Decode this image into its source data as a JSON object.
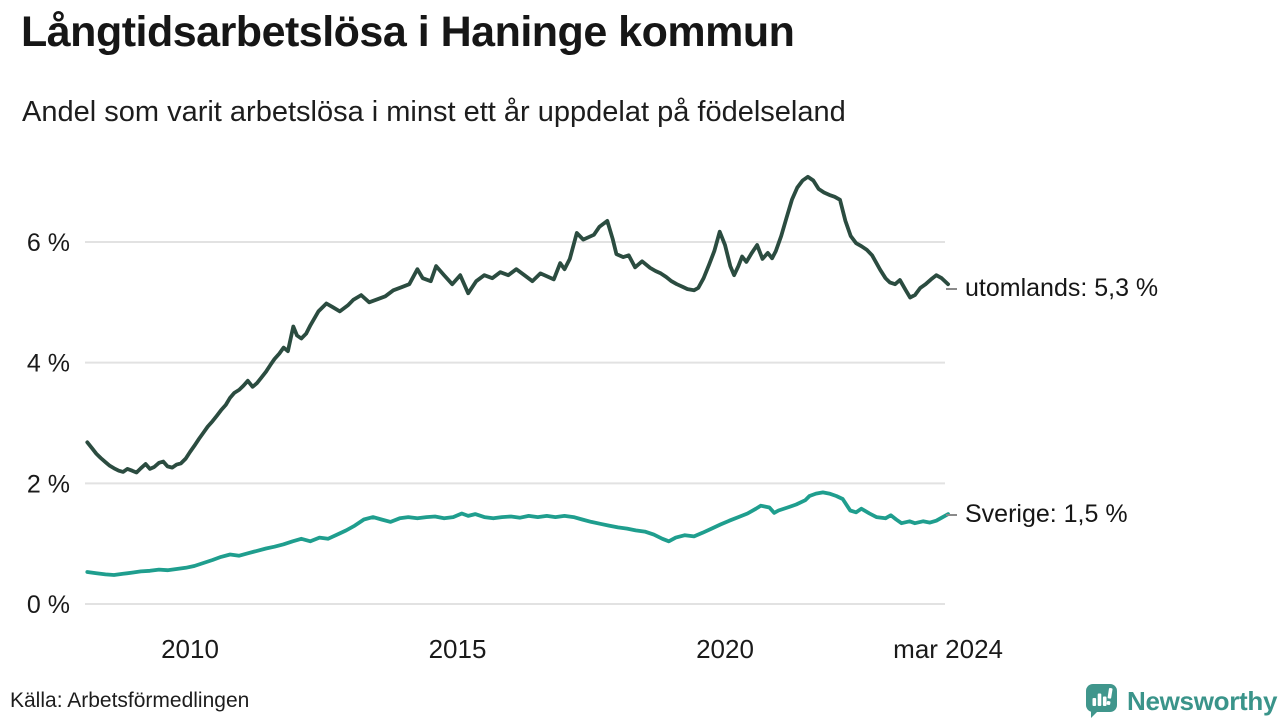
{
  "header": {
    "title": "Långtidsarbetslösa i Haninge kommun",
    "subtitle": "Andel som varit arbetslösa i minst ett år uppdelat på födelseland"
  },
  "footer": {
    "source": "Källa: Arbetsförmedlingen",
    "brand": "Newsworthy",
    "brand_color": "#40968c",
    "logo_icon": "speech-bubble-bar-chart"
  },
  "colors": {
    "text": "#1a1a1a",
    "grid": "#e2e2e2",
    "tick_dash": "#8a8a8a"
  },
  "chart_data": {
    "type": "line",
    "title": "Långtidsarbetslösa i Haninge kommun",
    "subtitle": "Andel som varit arbetslösa i minst ett år uppdelat på födelseland",
    "source": "Källa: Arbetsförmedlingen",
    "unit": "%",
    "grid": true,
    "legend_position": "end-of-line",
    "xlim": [
      2008.0,
      2024.25
    ],
    "ylim": [
      0,
      7.5
    ],
    "yticks": [
      {
        "value": 0,
        "label": "0 %"
      },
      {
        "value": 2,
        "label": "2 %"
      },
      {
        "value": 4,
        "label": "4 %"
      },
      {
        "value": 6,
        "label": "6 %"
      }
    ],
    "xticks": [
      {
        "value": 2010,
        "label": "2010"
      },
      {
        "value": 2015,
        "label": "2015"
      },
      {
        "value": 2020,
        "label": "2020"
      },
      {
        "value": 2024.17,
        "label": "mar 2024"
      }
    ],
    "series": [
      {
        "name": "utomlands",
        "label": "utomlands: 5,3 %",
        "last_value": 5.3,
        "color": "#2b4c40",
        "points": [
          [
            2008.08,
            2.68
          ],
          [
            2008.17,
            2.58
          ],
          [
            2008.25,
            2.49
          ],
          [
            2008.33,
            2.42
          ],
          [
            2008.42,
            2.35
          ],
          [
            2008.5,
            2.29
          ],
          [
            2008.58,
            2.25
          ],
          [
            2008.67,
            2.21
          ],
          [
            2008.75,
            2.19
          ],
          [
            2008.83,
            2.24
          ],
          [
            2008.92,
            2.21
          ],
          [
            2009.0,
            2.18
          ],
          [
            2009.08,
            2.25
          ],
          [
            2009.17,
            2.32
          ],
          [
            2009.25,
            2.24
          ],
          [
            2009.33,
            2.27
          ],
          [
            2009.42,
            2.34
          ],
          [
            2009.5,
            2.36
          ],
          [
            2009.58,
            2.28
          ],
          [
            2009.67,
            2.26
          ],
          [
            2009.75,
            2.31
          ],
          [
            2009.83,
            2.33
          ],
          [
            2009.92,
            2.41
          ],
          [
            2010.0,
            2.52
          ],
          [
            2010.08,
            2.62
          ],
          [
            2010.17,
            2.74
          ],
          [
            2010.25,
            2.84
          ],
          [
            2010.33,
            2.94
          ],
          [
            2010.42,
            3.03
          ],
          [
            2010.5,
            3.12
          ],
          [
            2010.58,
            3.21
          ],
          [
            2010.67,
            3.3
          ],
          [
            2010.75,
            3.42
          ],
          [
            2010.83,
            3.5
          ],
          [
            2010.92,
            3.55
          ],
          [
            2011.0,
            3.62
          ],
          [
            2011.08,
            3.7
          ],
          [
            2011.17,
            3.6
          ],
          [
            2011.25,
            3.66
          ],
          [
            2011.33,
            3.75
          ],
          [
            2011.42,
            3.85
          ],
          [
            2011.5,
            3.96
          ],
          [
            2011.58,
            4.06
          ],
          [
            2011.67,
            4.15
          ],
          [
            2011.75,
            4.25
          ],
          [
            2011.83,
            4.19
          ],
          [
            2011.93,
            4.6
          ],
          [
            2012.0,
            4.45
          ],
          [
            2012.08,
            4.4
          ],
          [
            2012.17,
            4.48
          ],
          [
            2012.25,
            4.62
          ],
          [
            2012.4,
            4.85
          ],
          [
            2012.55,
            4.98
          ],
          [
            2012.67,
            4.92
          ],
          [
            2012.8,
            4.85
          ],
          [
            2012.95,
            4.95
          ],
          [
            2013.05,
            5.04
          ],
          [
            2013.2,
            5.12
          ],
          [
            2013.35,
            5.0
          ],
          [
            2013.5,
            5.05
          ],
          [
            2013.65,
            5.1
          ],
          [
            2013.8,
            5.2
          ],
          [
            2013.95,
            5.25
          ],
          [
            2014.1,
            5.3
          ],
          [
            2014.25,
            5.55
          ],
          [
            2014.35,
            5.4
          ],
          [
            2014.5,
            5.35
          ],
          [
            2014.6,
            5.6
          ],
          [
            2014.75,
            5.45
          ],
          [
            2014.9,
            5.3
          ],
          [
            2015.05,
            5.45
          ],
          [
            2015.2,
            5.15
          ],
          [
            2015.35,
            5.35
          ],
          [
            2015.5,
            5.45
          ],
          [
            2015.65,
            5.4
          ],
          [
            2015.8,
            5.5
          ],
          [
            2015.95,
            5.45
          ],
          [
            2016.1,
            5.55
          ],
          [
            2016.25,
            5.45
          ],
          [
            2016.4,
            5.35
          ],
          [
            2016.55,
            5.48
          ],
          [
            2016.7,
            5.42
          ],
          [
            2016.8,
            5.38
          ],
          [
            2016.92,
            5.65
          ],
          [
            2017.0,
            5.55
          ],
          [
            2017.1,
            5.72
          ],
          [
            2017.23,
            6.15
          ],
          [
            2017.35,
            6.04
          ],
          [
            2017.45,
            6.08
          ],
          [
            2017.55,
            6.12
          ],
          [
            2017.65,
            6.25
          ],
          [
            2017.8,
            6.35
          ],
          [
            2017.9,
            6.05
          ],
          [
            2017.97,
            5.8
          ],
          [
            2018.1,
            5.75
          ],
          [
            2018.2,
            5.78
          ],
          [
            2018.32,
            5.58
          ],
          [
            2018.45,
            5.68
          ],
          [
            2018.6,
            5.57
          ],
          [
            2018.7,
            5.52
          ],
          [
            2018.8,
            5.48
          ],
          [
            2018.9,
            5.42
          ],
          [
            2019.0,
            5.35
          ],
          [
            2019.1,
            5.3
          ],
          [
            2019.2,
            5.26
          ],
          [
            2019.3,
            5.22
          ],
          [
            2019.42,
            5.2
          ],
          [
            2019.5,
            5.24
          ],
          [
            2019.6,
            5.4
          ],
          [
            2019.7,
            5.62
          ],
          [
            2019.8,
            5.85
          ],
          [
            2019.9,
            6.17
          ],
          [
            2020.0,
            5.95
          ],
          [
            2020.1,
            5.6
          ],
          [
            2020.17,
            5.45
          ],
          [
            2020.25,
            5.6
          ],
          [
            2020.32,
            5.76
          ],
          [
            2020.4,
            5.67
          ],
          [
            2020.5,
            5.82
          ],
          [
            2020.6,
            5.95
          ],
          [
            2020.7,
            5.72
          ],
          [
            2020.8,
            5.82
          ],
          [
            2020.88,
            5.73
          ],
          [
            2020.95,
            5.85
          ],
          [
            2021.05,
            6.1
          ],
          [
            2021.15,
            6.4
          ],
          [
            2021.25,
            6.7
          ],
          [
            2021.35,
            6.9
          ],
          [
            2021.45,
            7.02
          ],
          [
            2021.55,
            7.08
          ],
          [
            2021.65,
            7.02
          ],
          [
            2021.75,
            6.88
          ],
          [
            2021.85,
            6.82
          ],
          [
            2021.95,
            6.78
          ],
          [
            2022.05,
            6.75
          ],
          [
            2022.15,
            6.7
          ],
          [
            2022.25,
            6.35
          ],
          [
            2022.35,
            6.1
          ],
          [
            2022.45,
            5.98
          ],
          [
            2022.55,
            5.93
          ],
          [
            2022.65,
            5.87
          ],
          [
            2022.75,
            5.78
          ],
          [
            2022.9,
            5.54
          ],
          [
            2023.0,
            5.4
          ],
          [
            2023.08,
            5.33
          ],
          [
            2023.18,
            5.3
          ],
          [
            2023.27,
            5.37
          ],
          [
            2023.38,
            5.2
          ],
          [
            2023.46,
            5.08
          ],
          [
            2023.55,
            5.12
          ],
          [
            2023.65,
            5.24
          ],
          [
            2023.75,
            5.3
          ],
          [
            2023.85,
            5.38
          ],
          [
            2023.95,
            5.45
          ],
          [
            2024.05,
            5.4
          ],
          [
            2024.17,
            5.3
          ]
        ]
      },
      {
        "name": "Sverige",
        "label": "Sverige: 1,5 %",
        "last_value": 1.5,
        "color": "#1f9e8e",
        "points": [
          [
            2008.08,
            0.53
          ],
          [
            2008.25,
            0.51
          ],
          [
            2008.42,
            0.49
          ],
          [
            2008.58,
            0.48
          ],
          [
            2008.75,
            0.5
          ],
          [
            2008.92,
            0.52
          ],
          [
            2009.08,
            0.54
          ],
          [
            2009.25,
            0.55
          ],
          [
            2009.42,
            0.57
          ],
          [
            2009.58,
            0.56
          ],
          [
            2009.75,
            0.58
          ],
          [
            2009.92,
            0.6
          ],
          [
            2010.08,
            0.63
          ],
          [
            2010.25,
            0.68
          ],
          [
            2010.42,
            0.73
          ],
          [
            2010.58,
            0.78
          ],
          [
            2010.75,
            0.82
          ],
          [
            2010.92,
            0.8
          ],
          [
            2011.08,
            0.84
          ],
          [
            2011.25,
            0.88
          ],
          [
            2011.42,
            0.92
          ],
          [
            2011.58,
            0.95
          ],
          [
            2011.75,
            0.99
          ],
          [
            2011.92,
            1.04
          ],
          [
            2012.08,
            1.08
          ],
          [
            2012.25,
            1.04
          ],
          [
            2012.42,
            1.1
          ],
          [
            2012.58,
            1.08
          ],
          [
            2012.75,
            1.15
          ],
          [
            2012.92,
            1.22
          ],
          [
            2013.08,
            1.3
          ],
          [
            2013.25,
            1.4
          ],
          [
            2013.42,
            1.44
          ],
          [
            2013.58,
            1.4
          ],
          [
            2013.75,
            1.36
          ],
          [
            2013.92,
            1.42
          ],
          [
            2014.08,
            1.44
          ],
          [
            2014.25,
            1.42
          ],
          [
            2014.42,
            1.44
          ],
          [
            2014.58,
            1.45
          ],
          [
            2014.75,
            1.42
          ],
          [
            2014.92,
            1.44
          ],
          [
            2015.08,
            1.5
          ],
          [
            2015.2,
            1.46
          ],
          [
            2015.33,
            1.49
          ],
          [
            2015.5,
            1.44
          ],
          [
            2015.67,
            1.42
          ],
          [
            2015.83,
            1.44
          ],
          [
            2016.0,
            1.45
          ],
          [
            2016.17,
            1.43
          ],
          [
            2016.33,
            1.46
          ],
          [
            2016.5,
            1.44
          ],
          [
            2016.67,
            1.46
          ],
          [
            2016.83,
            1.44
          ],
          [
            2017.0,
            1.46
          ],
          [
            2017.17,
            1.44
          ],
          [
            2017.33,
            1.4
          ],
          [
            2017.5,
            1.36
          ],
          [
            2017.67,
            1.33
          ],
          [
            2017.83,
            1.3
          ],
          [
            2018.0,
            1.27
          ],
          [
            2018.17,
            1.25
          ],
          [
            2018.33,
            1.22
          ],
          [
            2018.5,
            1.2
          ],
          [
            2018.67,
            1.15
          ],
          [
            2018.83,
            1.08
          ],
          [
            2018.95,
            1.04
          ],
          [
            2019.08,
            1.1
          ],
          [
            2019.25,
            1.14
          ],
          [
            2019.42,
            1.12
          ],
          [
            2019.58,
            1.18
          ],
          [
            2019.75,
            1.25
          ],
          [
            2019.92,
            1.32
          ],
          [
            2020.08,
            1.38
          ],
          [
            2020.25,
            1.44
          ],
          [
            2020.42,
            1.5
          ],
          [
            2020.58,
            1.58
          ],
          [
            2020.67,
            1.63
          ],
          [
            2020.83,
            1.6
          ],
          [
            2020.92,
            1.51
          ],
          [
            2021.0,
            1.55
          ],
          [
            2021.17,
            1.6
          ],
          [
            2021.33,
            1.65
          ],
          [
            2021.5,
            1.72
          ],
          [
            2021.58,
            1.79
          ],
          [
            2021.7,
            1.83
          ],
          [
            2021.83,
            1.85
          ],
          [
            2021.95,
            1.83
          ],
          [
            2022.08,
            1.79
          ],
          [
            2022.2,
            1.74
          ],
          [
            2022.34,
            1.55
          ],
          [
            2022.45,
            1.52
          ],
          [
            2022.55,
            1.58
          ],
          [
            2022.7,
            1.5
          ],
          [
            2022.83,
            1.44
          ],
          [
            2023.0,
            1.42
          ],
          [
            2023.1,
            1.47
          ],
          [
            2023.2,
            1.4
          ],
          [
            2023.3,
            1.34
          ],
          [
            2023.45,
            1.37
          ],
          [
            2023.55,
            1.34
          ],
          [
            2023.7,
            1.37
          ],
          [
            2023.83,
            1.35
          ],
          [
            2023.95,
            1.38
          ],
          [
            2024.05,
            1.43
          ],
          [
            2024.17,
            1.49
          ]
        ]
      }
    ]
  }
}
